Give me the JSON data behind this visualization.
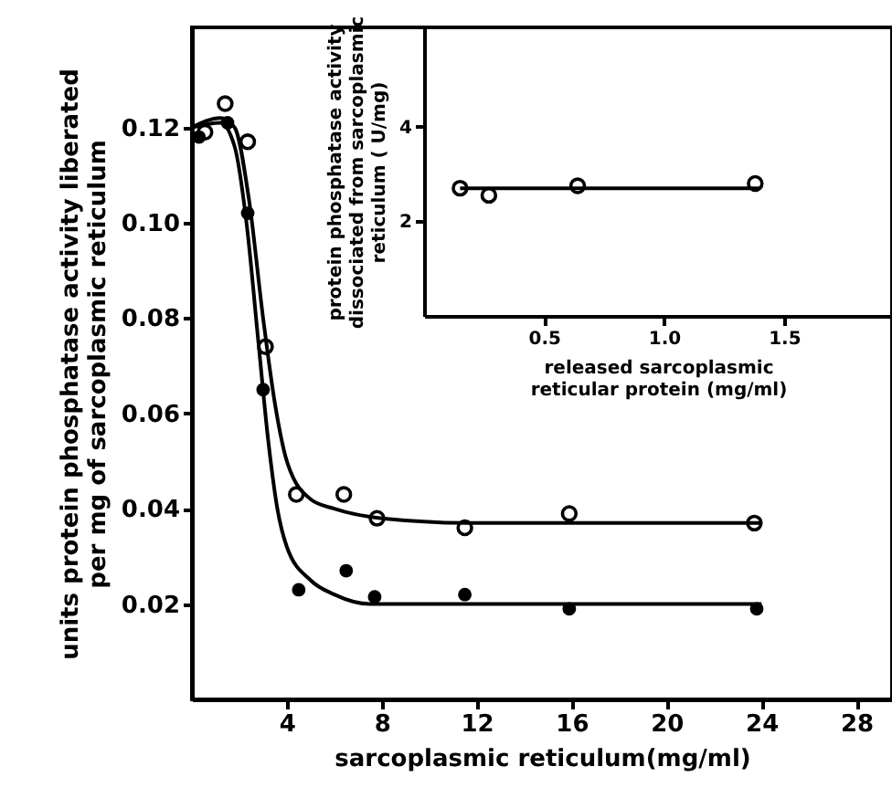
{
  "chart_data": [
    {
      "type": "scatter",
      "xlabel": "sarcoplasmic reticulum(mg/ml)",
      "ylabel": "units protein phosphatase activity liberated per mg of sarcoplasmic reticulum",
      "xlim": [
        0,
        29.5
      ],
      "xticks": [
        4,
        8,
        12,
        16,
        20,
        24,
        28
      ],
      "ylim": [
        0,
        0.141
      ],
      "yticks": [
        0.02,
        0.04,
        0.06,
        0.08,
        {
          "value": 0.1,
          "label": "0.10"
        },
        0.12
      ],
      "grid": false,
      "series": [
        {
          "type": "line",
          "marker": "none",
          "color": "#000000",
          "x": [
            0,
            1.2,
            1.8,
            2.4,
            3,
            3.5,
            4,
            5,
            6,
            8,
            12,
            24
          ],
          "values": [
            0.12,
            0.122,
            0.12,
            0.105,
            0.08,
            0.062,
            0.05,
            0.042,
            0.04,
            0.038,
            0.037,
            0.037
          ]
        },
        {
          "type": "line",
          "marker": "none",
          "color": "#000000",
          "x": [
            0,
            1.2,
            1.8,
            2.3,
            2.8,
            3.2,
            3.6,
            4,
            5,
            6,
            7.5,
            12,
            24
          ],
          "values": [
            0.12,
            0.121,
            0.116,
            0.1,
            0.075,
            0.055,
            0.04,
            0.032,
            0.025,
            0.022,
            0.02,
            0.02,
            0.02
          ]
        },
        {
          "marker": "circle",
          "color": "#000000",
          "x": [
            0.55,
            1.4,
            2.35,
            3.1,
            4.4,
            6.4,
            7.8,
            11.5,
            15.9,
            23.7
          ],
          "values": [
            0.119,
            0.125,
            0.117,
            0.074,
            0.043,
            0.043,
            0.038,
            0.036,
            0.039,
            0.037
          ]
        },
        {
          "marker": "circle",
          "color": "#000000",
          "x": [
            0.3,
            1.5,
            2.35,
            3.0,
            4.5,
            6.5,
            7.7,
            11.5,
            15.9,
            23.8
          ],
          "values": [
            0.118,
            0.121,
            0.102,
            0.065,
            0.023,
            0.027,
            0.0215,
            0.022,
            0.019,
            0.019
          ]
        }
      ]
    },
    {
      "type": "line",
      "xlabel": "released sarcoplasmic reticular protein (mg/ml)",
      "ylabel": "protein phosphatase activity dissociated from sarcoplasmic reticulum ( U/mg)",
      "xlim": [
        0,
        1.95
      ],
      "xticks": [
        0.5,
        {
          "value": 1,
          "label": "1.0"
        },
        1.5
      ],
      "ylim": [
        0,
        6.1
      ],
      "yticks": [
        2,
        4
      ],
      "grid": false,
      "series": [
        {
          "marker": "none",
          "color": "#000000",
          "x": [
            0.15,
            1.4
          ],
          "values": [
            2.7,
            2.7
          ]
        },
        {
          "type": "scatter",
          "marker": "circle",
          "color": "#000000",
          "x": [
            0.15,
            0.27,
            0.64,
            1.38
          ],
          "values": [
            2.7,
            2.55,
            2.75,
            2.8
          ]
        }
      ]
    }
  ]
}
